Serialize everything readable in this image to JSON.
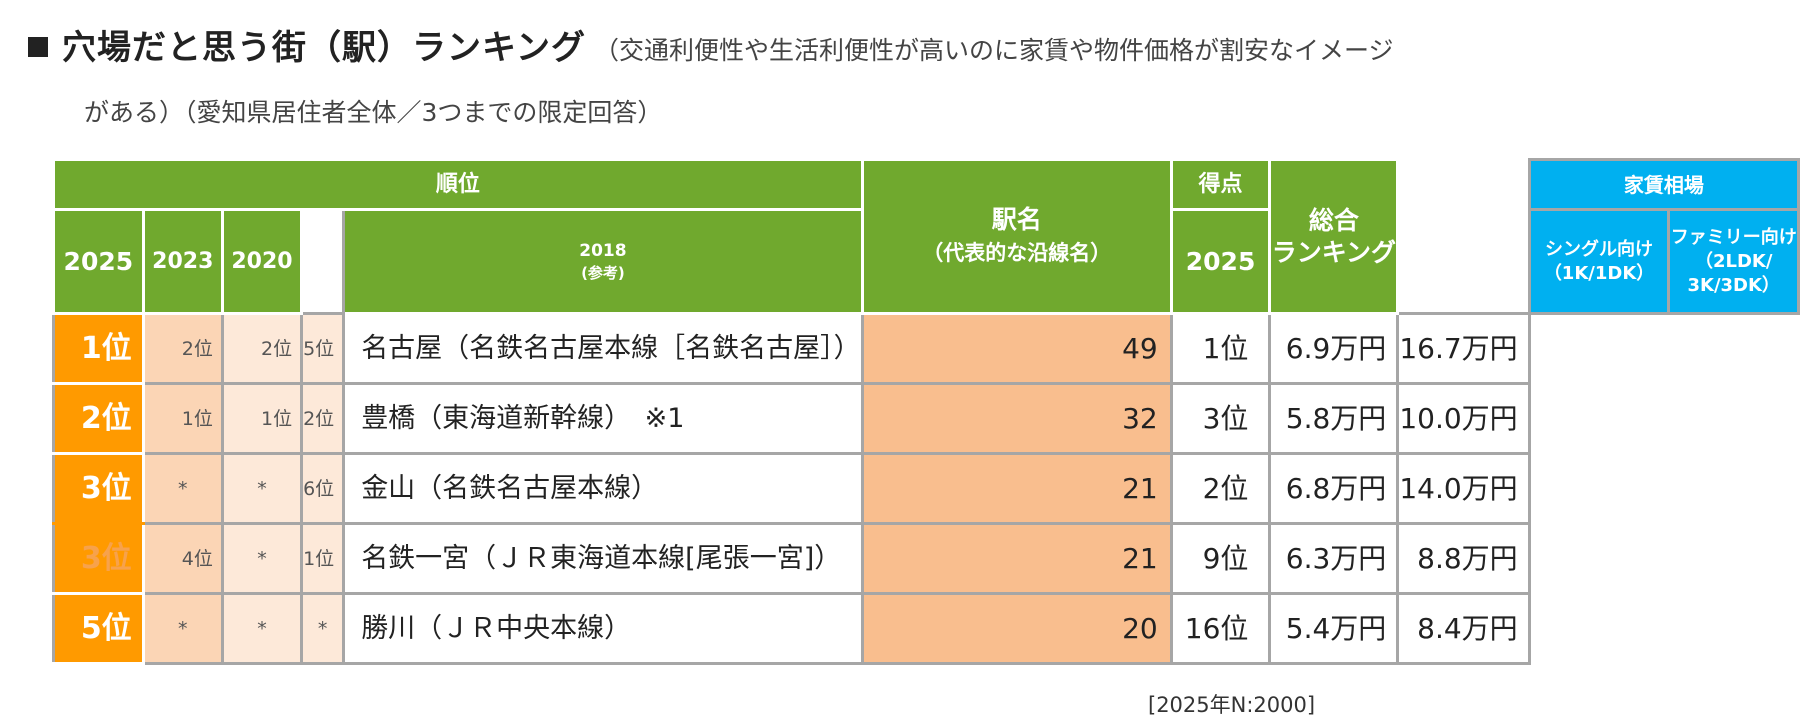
{
  "title": {
    "main": "穴場だと思う街（駅）ランキング",
    "note": "（交通利便性や生活利便性が高いのに家賃や物件価格が割安なイメージ",
    "sub": "がある）（愛知県居住者全体／3つまでの限定回答）"
  },
  "header": {
    "rank_group": "順位",
    "y2025": "2025",
    "y2023": "2023",
    "y2020": "2020",
    "y2018": "2018",
    "y2018_note": "(参考)",
    "station": "駅名",
    "station_note": "（代表的な沿線名）",
    "score": "得点",
    "score_year": "2025",
    "overall": "総合",
    "overall2": "ランキング",
    "rent_group": "家賃相場",
    "single": "シングル向け",
    "single_note": "（1K/1DK）",
    "family": "ファミリー向け",
    "family_note1": "（2LDK/",
    "family_note2": "3K/3DK）"
  },
  "rows": [
    {
      "r2025": "1位",
      "r2023": "2位",
      "r2020": "2位",
      "r2018": "5位",
      "station": "名古屋（名鉄名古屋本線［名鉄名古屋］）",
      "score": "49",
      "overall": "1位",
      "single": "6.9万円",
      "family": "16.7万円"
    },
    {
      "r2025": "2位",
      "r2023": "1位",
      "r2020": "1位",
      "r2018": "2位",
      "station": "豊橋（東海道新幹線）　※1",
      "score": "32",
      "overall": "3位",
      "single": "5.8万円",
      "family": "10.0万円"
    },
    {
      "r2025": "3位",
      "r2023": "*",
      "r2020": "*",
      "r2018": "6位",
      "station": "金山（名鉄名古屋本線）",
      "score": "21",
      "overall": "2位",
      "single": "6.8万円",
      "family": "14.0万円"
    },
    {
      "r2025": "3位",
      "r2023": "4位",
      "r2020": "*",
      "r2018": "1位",
      "station": "名鉄一宮（ＪＲ東海道本線[尾張一宮]）",
      "score": "21",
      "overall": "9位",
      "single": "6.3万円",
      "family": "8.8万円"
    },
    {
      "r2025": "5位",
      "r2023": "*",
      "r2020": "*",
      "r2018": "*",
      "station": "勝川（ＪＲ中央本線）",
      "score": "20",
      "overall": "16位",
      "single": "5.4万円",
      "family": "8.4万円"
    }
  ],
  "footnote": "[2025年N:2000]",
  "colors": {
    "green": "#70a92e",
    "blue": "#00b0f0",
    "orange": "#ff9a00",
    "peach": "#fbd5b5",
    "light_peach": "#fde9d9",
    "score": "#f9be8e",
    "border": "#a6a6a6"
  }
}
